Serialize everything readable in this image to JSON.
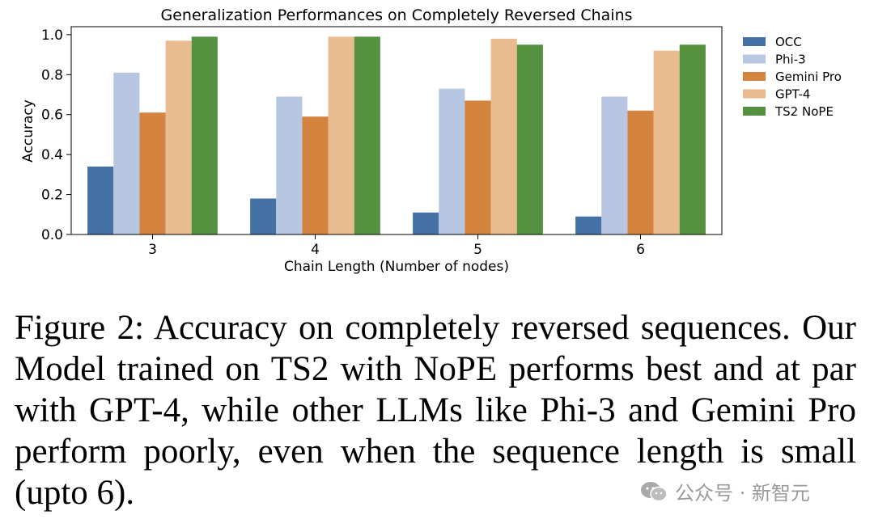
{
  "chart_data": {
    "type": "bar",
    "title": "Generalization Performances on Completely Reversed Chains",
    "xlabel": "Chain Length (Number of nodes)",
    "ylabel": "Accuracy",
    "ylim": [
      0,
      1.04
    ],
    "yticks": [
      "0.0",
      "0.2",
      "0.4",
      "0.6",
      "0.8",
      "1.0"
    ],
    "ytick_values": [
      0,
      0.2,
      0.4,
      0.6,
      0.8,
      1.0
    ],
    "grid": false,
    "legend_position": "right",
    "categories": [
      "3",
      "4",
      "5",
      "6"
    ],
    "series": [
      {
        "name": "OCC",
        "color": "#4472a4",
        "values": [
          0.34,
          0.18,
          0.11,
          0.09
        ]
      },
      {
        "name": "Phi-3",
        "color": "#b7c7e2",
        "values": [
          0.81,
          0.69,
          0.73,
          0.69
        ]
      },
      {
        "name": "Gemini Pro",
        "color": "#d4843e",
        "values": [
          0.61,
          0.59,
          0.67,
          0.62
        ]
      },
      {
        "name": "GPT-4",
        "color": "#e8bc8e",
        "values": [
          0.97,
          0.99,
          0.98,
          0.92
        ]
      },
      {
        "name": "TS2 NoPE",
        "color": "#55923f",
        "values": [
          0.99,
          0.99,
          0.95,
          0.95
        ]
      }
    ]
  },
  "caption": {
    "text": "Figure 2: Accuracy on completely reversed sequences. Our Model trained on TS2 with NoPE performs best and at par with GPT-4, while other LLMs like Phi-3 and Gemini Pro perform poorly, even when the sequence length is small (upto 6)."
  },
  "watermark": {
    "text": "公众号 · 新智元",
    "icon": "wechat-icon"
  }
}
